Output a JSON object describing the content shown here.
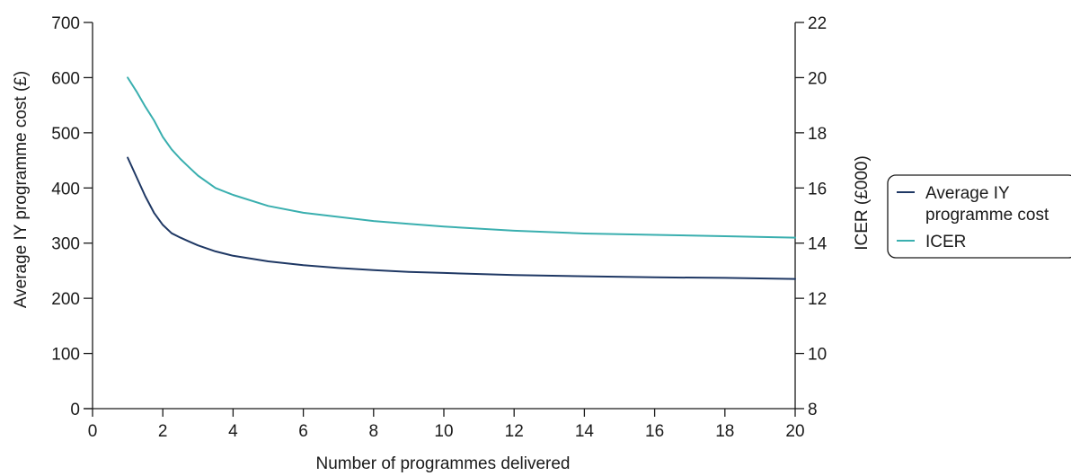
{
  "chart_data": {
    "type": "line",
    "xlabel": "Number of programmes delivered",
    "ylabel_left": "Average IY programme cost (£)",
    "ylabel_right": "ICER (£000)",
    "xlim": [
      0,
      20
    ],
    "ylim_left": [
      0,
      700
    ],
    "ylim_right": [
      8,
      22
    ],
    "x_ticks": [
      "0",
      "2",
      "4",
      "6",
      "8",
      "10",
      "12",
      "14",
      "16",
      "18",
      "20"
    ],
    "y_left_ticks": [
      "0",
      "100",
      "200",
      "300",
      "400",
      "500",
      "600",
      "700"
    ],
    "y_right_ticks": [
      "8",
      "10",
      "12",
      "14",
      "16",
      "18",
      "20",
      "22"
    ],
    "grid": false,
    "legend_position": "right",
    "series": [
      {
        "name": "Average IY programme cost",
        "axis": "left",
        "color": "#1f3864",
        "x": [
          1,
          1.25,
          1.5,
          1.75,
          2,
          2.25,
          2.5,
          2.75,
          3,
          3.5,
          4,
          5,
          6,
          7,
          8,
          9,
          10,
          12,
          14,
          16,
          18,
          20
        ],
        "y": [
          455,
          420,
          385,
          355,
          333,
          318,
          310,
          303,
          296,
          285,
          277,
          267,
          260,
          255,
          251,
          248,
          246,
          242,
          240,
          238,
          237,
          235
        ]
      },
      {
        "name": "ICER",
        "axis": "right",
        "color": "#3aafaf",
        "x": [
          1,
          1.25,
          1.5,
          1.75,
          2,
          2.25,
          2.5,
          2.75,
          3,
          3.5,
          4,
          5,
          6,
          7,
          8,
          9,
          10,
          12,
          14,
          16,
          18,
          20
        ],
        "y": [
          20.0,
          19.5,
          18.95,
          18.45,
          17.85,
          17.4,
          17.05,
          16.75,
          16.45,
          16.0,
          15.75,
          15.35,
          15.1,
          14.95,
          14.8,
          14.7,
          14.6,
          14.45,
          14.35,
          14.3,
          14.25,
          14.2
        ]
      }
    ]
  }
}
